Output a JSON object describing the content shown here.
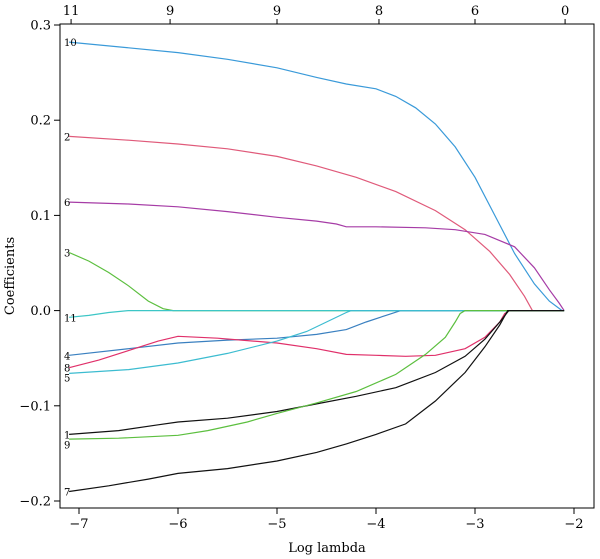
{
  "chart_data": {
    "type": "line",
    "title": "",
    "xlabel": "Log lambda",
    "ylabel": "Coefficients",
    "xlim": [
      -7.2,
      -2.0
    ],
    "ylim": [
      -0.2,
      0.3
    ],
    "xticks": [
      -7,
      -6,
      -5,
      -4,
      -3,
      -2
    ],
    "yticks": [
      -0.2,
      -0.1,
      0.0,
      0.1,
      0.2,
      0.3
    ],
    "ytick_labels": [
      "−0.2",
      "−0.1",
      "0.0",
      "0.1",
      "0.2",
      "0.3"
    ],
    "xtick_labels": [
      "−7",
      "−6",
      "−5",
      "−4",
      "−3",
      "−2"
    ],
    "top_axis": {
      "ticks": [
        -7.08,
        -6.08,
        -5.0,
        -3.97,
        -3.0,
        -2.09
      ],
      "labels": [
        "11",
        "9",
        "9",
        "8",
        "6",
        "0"
      ]
    },
    "grid": false,
    "series": [
      {
        "label": "10",
        "color": "#3a9ad9",
        "points": [
          [
            -7.1,
            0.282
          ],
          [
            -6.5,
            0.276
          ],
          [
            -6.0,
            0.271
          ],
          [
            -5.5,
            0.264
          ],
          [
            -5.0,
            0.255
          ],
          [
            -4.6,
            0.245
          ],
          [
            -4.3,
            0.238
          ],
          [
            -4.0,
            0.233
          ],
          [
            -3.8,
            0.225
          ],
          [
            -3.6,
            0.213
          ],
          [
            -3.4,
            0.196
          ],
          [
            -3.2,
            0.172
          ],
          [
            -3.0,
            0.14
          ],
          [
            -2.8,
            0.1
          ],
          [
            -2.6,
            0.06
          ],
          [
            -2.4,
            0.028
          ],
          [
            -2.25,
            0.01
          ],
          [
            -2.12,
            0.0
          ]
        ]
      },
      {
        "label": "2",
        "color": "#e05a7a",
        "points": [
          [
            -7.1,
            0.183
          ],
          [
            -6.5,
            0.179
          ],
          [
            -6.0,
            0.175
          ],
          [
            -5.5,
            0.17
          ],
          [
            -5.0,
            0.162
          ],
          [
            -4.6,
            0.152
          ],
          [
            -4.2,
            0.14
          ],
          [
            -3.8,
            0.125
          ],
          [
            -3.4,
            0.105
          ],
          [
            -3.1,
            0.085
          ],
          [
            -2.85,
            0.062
          ],
          [
            -2.65,
            0.038
          ],
          [
            -2.5,
            0.015
          ],
          [
            -2.42,
            0.0
          ]
        ]
      },
      {
        "label": "6",
        "color": "#a63ca6",
        "points": [
          [
            -7.1,
            0.114
          ],
          [
            -6.5,
            0.112
          ],
          [
            -6.0,
            0.109
          ],
          [
            -5.5,
            0.104
          ],
          [
            -5.0,
            0.098
          ],
          [
            -4.6,
            0.094
          ],
          [
            -4.4,
            0.091
          ],
          [
            -4.3,
            0.088
          ],
          [
            -4.0,
            0.088
          ],
          [
            -3.5,
            0.087
          ],
          [
            -3.2,
            0.085
          ],
          [
            -2.9,
            0.08
          ],
          [
            -2.6,
            0.067
          ],
          [
            -2.4,
            0.045
          ],
          [
            -2.25,
            0.022
          ],
          [
            -2.15,
            0.008
          ],
          [
            -2.1,
            0.0
          ]
        ]
      },
      {
        "label": "3",
        "color": "#5cbf3f",
        "points": [
          [
            -7.1,
            0.061
          ],
          [
            -6.9,
            0.052
          ],
          [
            -6.7,
            0.04
          ],
          [
            -6.5,
            0.026
          ],
          [
            -6.3,
            0.01
          ],
          [
            -6.15,
            0.002
          ],
          [
            -6.05,
            0.0
          ],
          [
            -2.1,
            0.0
          ]
        ]
      },
      {
        "label": "11",
        "color": "#3cc6c6",
        "points": [
          [
            -7.1,
            -0.007
          ],
          [
            -6.9,
            -0.005
          ],
          [
            -6.7,
            -0.002
          ],
          [
            -6.5,
            0.0
          ],
          [
            -2.1,
            0.0
          ]
        ]
      },
      {
        "label": "4",
        "color": "#3a80c0",
        "points": [
          [
            -7.1,
            -0.047
          ],
          [
            -6.5,
            -0.04
          ],
          [
            -6.0,
            -0.034
          ],
          [
            -5.5,
            -0.031
          ],
          [
            -5.0,
            -0.029
          ],
          [
            -4.6,
            -0.025
          ],
          [
            -4.3,
            -0.02
          ],
          [
            -4.1,
            -0.012
          ],
          [
            -3.9,
            -0.005
          ],
          [
            -3.75,
            0.0
          ],
          [
            -2.1,
            0.0
          ]
        ]
      },
      {
        "label": "8",
        "color": "#e0306a",
        "points": [
          [
            -7.1,
            -0.06
          ],
          [
            -6.8,
            -0.052
          ],
          [
            -6.5,
            -0.042
          ],
          [
            -6.2,
            -0.032
          ],
          [
            -6.0,
            -0.027
          ],
          [
            -5.6,
            -0.029
          ],
          [
            -5.0,
            -0.034
          ],
          [
            -4.6,
            -0.04
          ],
          [
            -4.3,
            -0.046
          ],
          [
            -4.0,
            -0.047
          ],
          [
            -3.7,
            -0.048
          ],
          [
            -3.4,
            -0.047
          ],
          [
            -3.1,
            -0.04
          ],
          [
            -2.9,
            -0.028
          ],
          [
            -2.75,
            -0.012
          ],
          [
            -2.7,
            -0.003
          ],
          [
            -2.65,
            0.0
          ],
          [
            -2.1,
            0.0
          ]
        ]
      },
      {
        "label": "5",
        "color": "#3cbcd0",
        "points": [
          [
            -7.1,
            -0.066
          ],
          [
            -6.5,
            -0.062
          ],
          [
            -6.0,
            -0.055
          ],
          [
            -5.5,
            -0.045
          ],
          [
            -5.0,
            -0.032
          ],
          [
            -4.7,
            -0.022
          ],
          [
            -4.5,
            -0.012
          ],
          [
            -4.3,
            -0.002
          ],
          [
            -4.25,
            0.0
          ],
          [
            -2.1,
            0.0
          ]
        ]
      },
      {
        "label": "1",
        "color": "#111111",
        "points": [
          [
            -7.1,
            -0.13
          ],
          [
            -6.6,
            -0.126
          ],
          [
            -6.2,
            -0.12
          ],
          [
            -6.0,
            -0.117
          ],
          [
            -5.5,
            -0.113
          ],
          [
            -5.0,
            -0.106
          ],
          [
            -4.6,
            -0.098
          ],
          [
            -4.2,
            -0.09
          ],
          [
            -3.8,
            -0.081
          ],
          [
            -3.4,
            -0.065
          ],
          [
            -3.1,
            -0.048
          ],
          [
            -2.9,
            -0.03
          ],
          [
            -2.75,
            -0.012
          ],
          [
            -2.66,
            0.0
          ],
          [
            -2.1,
            0.0
          ]
        ]
      },
      {
        "label": "9",
        "color": "#5cbf3f",
        "points": [
          [
            -7.1,
            -0.135
          ],
          [
            -6.6,
            -0.134
          ],
          [
            -6.0,
            -0.131
          ],
          [
            -5.7,
            -0.126
          ],
          [
            -5.3,
            -0.117
          ],
          [
            -5.0,
            -0.108
          ],
          [
            -4.6,
            -0.097
          ],
          [
            -4.2,
            -0.085
          ],
          [
            -3.8,
            -0.067
          ],
          [
            -3.5,
            -0.046
          ],
          [
            -3.3,
            -0.028
          ],
          [
            -3.2,
            -0.012
          ],
          [
            -3.15,
            -0.003
          ],
          [
            -3.1,
            0.0
          ],
          [
            -2.1,
            0.0
          ]
        ]
      },
      {
        "label": "7",
        "color": "#111111",
        "points": [
          [
            -7.1,
            -0.19
          ],
          [
            -6.7,
            -0.184
          ],
          [
            -6.3,
            -0.177
          ],
          [
            -6.0,
            -0.171
          ],
          [
            -5.5,
            -0.166
          ],
          [
            -5.0,
            -0.158
          ],
          [
            -4.6,
            -0.149
          ],
          [
            -4.3,
            -0.14
          ],
          [
            -4.0,
            -0.13
          ],
          [
            -3.7,
            -0.119
          ],
          [
            -3.4,
            -0.095
          ],
          [
            -3.1,
            -0.065
          ],
          [
            -2.9,
            -0.038
          ],
          [
            -2.75,
            -0.015
          ],
          [
            -2.67,
            0.0
          ],
          [
            -2.1,
            0.0
          ]
        ]
      }
    ]
  }
}
